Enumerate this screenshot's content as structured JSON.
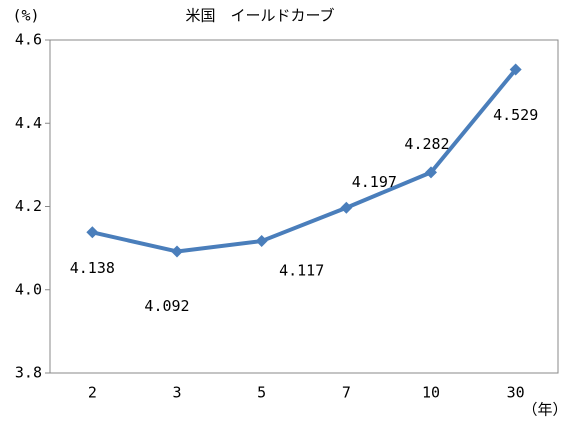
{
  "chart_data": {
    "type": "line",
    "title": "米国　イールドカーブ",
    "y_label": "(%)",
    "x_label": "（年）",
    "categories": [
      "2",
      "3",
      "5",
      "7",
      "10",
      "30"
    ],
    "series": [
      {
        "name": "米国",
        "color": "#4a7ebb",
        "values": [
          4.138,
          4.092,
          4.117,
          4.197,
          4.282,
          4.529
        ]
      }
    ],
    "ylim": [
      3.8,
      4.6
    ],
    "yticks": [
      3.8,
      {
        "value": 4.0,
        "label": "4.0"
      },
      4.2,
      4.4,
      4.6
    ],
    "grid": false
  }
}
